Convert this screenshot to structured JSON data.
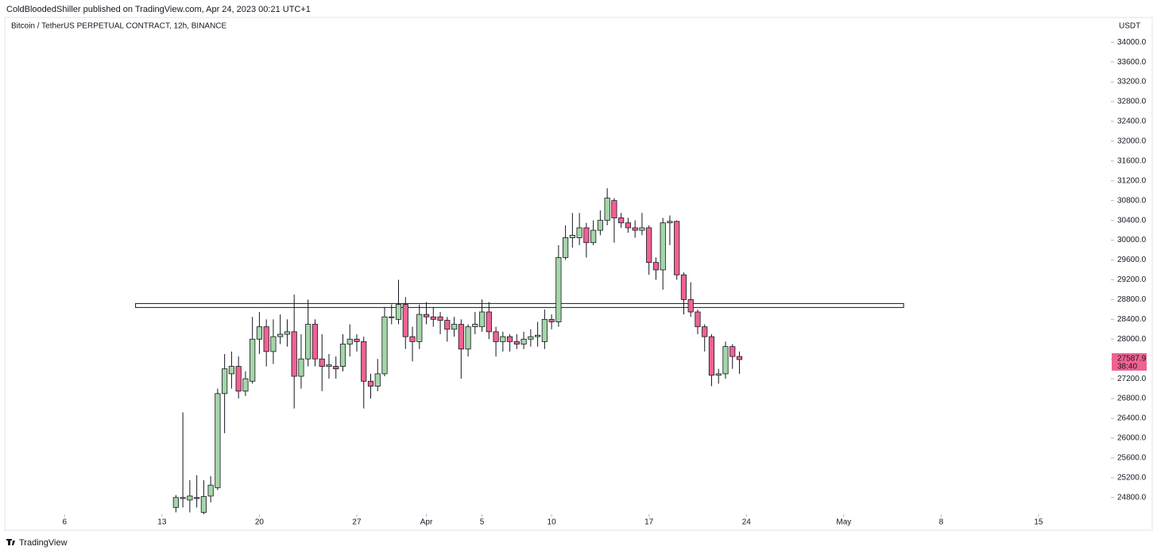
{
  "header": "ColdBloodedShiller published on TradingView.com, Apr 24, 2023 00:21 UTC+1",
  "footer": "TradingView",
  "chart_data": {
    "type": "candlestick",
    "title": "Bitcoin / TetherUS PERPETUAL CONTRACT, 12h, BINANCE",
    "y_axis_label": "USDT",
    "countdown": "38:40",
    "up_color": "#a5d6a7",
    "down_color": "#f06292",
    "zone": {
      "x": [
        5.1,
        60.3
      ],
      "y": [
        28640,
        28720
      ]
    },
    "xlim": [
      -4.3,
      75.2
    ],
    "ylim": [
      24460,
      34500
    ],
    "xticks": [
      {
        "value": 0,
        "label": "6"
      },
      {
        "value": 7,
        "label": "13"
      },
      {
        "value": 14,
        "label": "20"
      },
      {
        "value": 21,
        "label": "27"
      },
      {
        "value": 26,
        "label": "Apr"
      },
      {
        "value": 30,
        "label": "5"
      },
      {
        "value": 35,
        "label": "10"
      },
      {
        "value": 42,
        "label": "17"
      },
      {
        "value": 49,
        "label": "24"
      },
      {
        "value": 56,
        "label": "May"
      },
      {
        "value": 63,
        "label": "8"
      },
      {
        "value": 70,
        "label": "15"
      }
    ],
    "yticks": [
      {
        "value": 24800,
        "label": "24800.0"
      },
      {
        "value": 25200,
        "label": "25200.0"
      },
      {
        "value": 25600,
        "label": "25600.0"
      },
      {
        "value": 26000,
        "label": "26000.0"
      },
      {
        "value": 26400,
        "label": "26400.0"
      },
      {
        "value": 26800,
        "label": "26800.0"
      },
      {
        "value": 27200,
        "label": "27200.0"
      },
      {
        "value": 27600,
        "label": "27600.0"
      },
      {
        "value": 28000,
        "label": "28000.0"
      },
      {
        "value": 28400,
        "label": "28400.0"
      },
      {
        "value": 28800,
        "label": "28800.0"
      },
      {
        "value": 29200,
        "label": "29200.0"
      },
      {
        "value": 29600,
        "label": "29600.0"
      },
      {
        "value": 30000,
        "label": "30000.0"
      },
      {
        "value": 30400,
        "label": "30400.0"
      },
      {
        "value": 30800,
        "label": "30800.0"
      },
      {
        "value": 31200,
        "label": "31200.0"
      },
      {
        "value": 31600,
        "label": "31600.0"
      },
      {
        "value": 32000,
        "label": "32000.0"
      },
      {
        "value": 32400,
        "label": "32400.0"
      },
      {
        "value": 32800,
        "label": "32800.0"
      },
      {
        "value": 33200,
        "label": "33200.0"
      },
      {
        "value": 33600,
        "label": "33600.0"
      },
      {
        "value": 34000,
        "label": "34000.0"
      }
    ],
    "x": [
      8,
      8.5,
      9,
      9.5,
      10,
      10.5,
      11,
      11.5,
      12,
      12.5,
      13,
      13.5,
      14,
      14.5,
      15,
      15.5,
      16,
      16.5,
      17,
      17.5,
      18,
      18.5,
      19,
      19.5,
      20,
      20.5,
      21,
      21.5,
      22,
      22.5,
      23,
      23.5,
      24,
      24.5,
      25,
      25.5,
      26,
      26.5,
      27,
      27.5,
      28,
      28.5,
      29,
      29.5,
      30,
      30.5,
      31,
      31.5,
      32,
      32.5,
      33,
      33.5,
      34,
      34.5,
      35,
      35.5,
      36,
      36.5,
      37,
      37.5,
      38,
      38.5,
      39,
      39.5,
      40,
      40.5,
      41,
      41.5,
      42,
      42.5,
      43,
      43.5,
      44,
      44.5,
      45,
      45.5,
      46,
      46.5,
      47,
      47.5,
      48,
      48.5
    ],
    "open": [
      24600,
      24780,
      24750,
      24800,
      24500,
      24830,
      25000,
      26900,
      27300,
      27450,
      26950,
      27150,
      28000,
      28250,
      27750,
      28050,
      28100,
      28150,
      27250,
      27600,
      28300,
      27600,
      27450,
      27450,
      27450,
      27900,
      28000,
      27950,
      27150,
      27050,
      27300,
      28450,
      28400,
      28700,
      28050,
      27950,
      28500,
      28450,
      28450,
      28380,
      28200,
      28300,
      27800,
      28250,
      28250,
      28550,
      28150,
      27950,
      28050,
      27950,
      27900,
      28000,
      28050,
      27950,
      28400,
      28350,
      29650,
      30050,
      30050,
      30250,
      29950,
      30200,
      30400,
      30800,
      30450,
      30350,
      30250,
      30200,
      30250,
      29550,
      29400,
      30350,
      30380,
      29300,
      28800,
      28550,
      28250,
      28050,
      27270,
      27300,
      27850,
      27650
    ],
    "high": [
      24850,
      26520,
      25150,
      25250,
      25150,
      25230,
      27000,
      27700,
      27750,
      27650,
      27350,
      28450,
      28550,
      28400,
      28400,
      28500,
      28400,
      28900,
      28100,
      28800,
      28400,
      28100,
      27700,
      27650,
      28100,
      28300,
      28100,
      28050,
      27300,
      27600,
      28650,
      28700,
      29200,
      28850,
      28250,
      28700,
      28750,
      28650,
      28550,
      28450,
      28450,
      28400,
      28300,
      28550,
      28800,
      28750,
      28250,
      28150,
      28100,
      28100,
      28150,
      28200,
      28350,
      28600,
      28500,
      29900,
      30300,
      30550,
      30550,
      30350,
      30400,
      30600,
      31050,
      30850,
      30550,
      30450,
      30400,
      30550,
      30300,
      29650,
      30450,
      30500,
      30400,
      29350,
      29150,
      28600,
      28300,
      28100,
      27400,
      27950,
      27900,
      27750
    ],
    "low": [
      24500,
      24600,
      24500,
      24600,
      24300,
      24700,
      24950,
      26100,
      27000,
      26800,
      26850,
      27100,
      27700,
      27450,
      27500,
      27900,
      27850,
      26600,
      27000,
      27450,
      27450,
      26950,
      27200,
      27200,
      27350,
      27650,
      27750,
      26600,
      26800,
      26950,
      27250,
      28300,
      28300,
      27800,
      27550,
      27800,
      28300,
      28250,
      28100,
      27950,
      28050,
      27200,
      27650,
      28100,
      28150,
      28000,
      27650,
      27750,
      27750,
      27800,
      27800,
      27850,
      27850,
      27800,
      28200,
      28250,
      29600,
      29850,
      29900,
      29650,
      29900,
      30100,
      30300,
      29950,
      30250,
      30150,
      30050,
      30100,
      29300,
      29200,
      29000,
      29900,
      29200,
      28500,
      28450,
      28100,
      27750,
      27050,
      27100,
      27200,
      27400,
      27300
    ],
    "close": [
      24800,
      24800,
      24830,
      24780,
      24820,
      25050,
      26900,
      27400,
      27450,
      26950,
      27200,
      28000,
      28250,
      27750,
      28050,
      28100,
      28150,
      27250,
      27600,
      28300,
      27600,
      27450,
      27480,
      27400,
      27900,
      28000,
      27950,
      27150,
      27050,
      27300,
      28450,
      28450,
      28700,
      28050,
      27950,
      28500,
      28450,
      28400,
      28380,
      28200,
      28300,
      27800,
      28250,
      28300,
      28550,
      28150,
      27950,
      28050,
      27950,
      27900,
      28000,
      28050,
      28080,
      28400,
      28350,
      29650,
      30050,
      30100,
      30250,
      29950,
      30200,
      30400,
      30850,
      30450,
      30350,
      30250,
      30200,
      30250,
      29550,
      29400,
      30350,
      30380,
      29300,
      28800,
      28550,
      28250,
      28050,
      27270,
      27300,
      27850,
      27650,
      27587.9
    ]
  }
}
